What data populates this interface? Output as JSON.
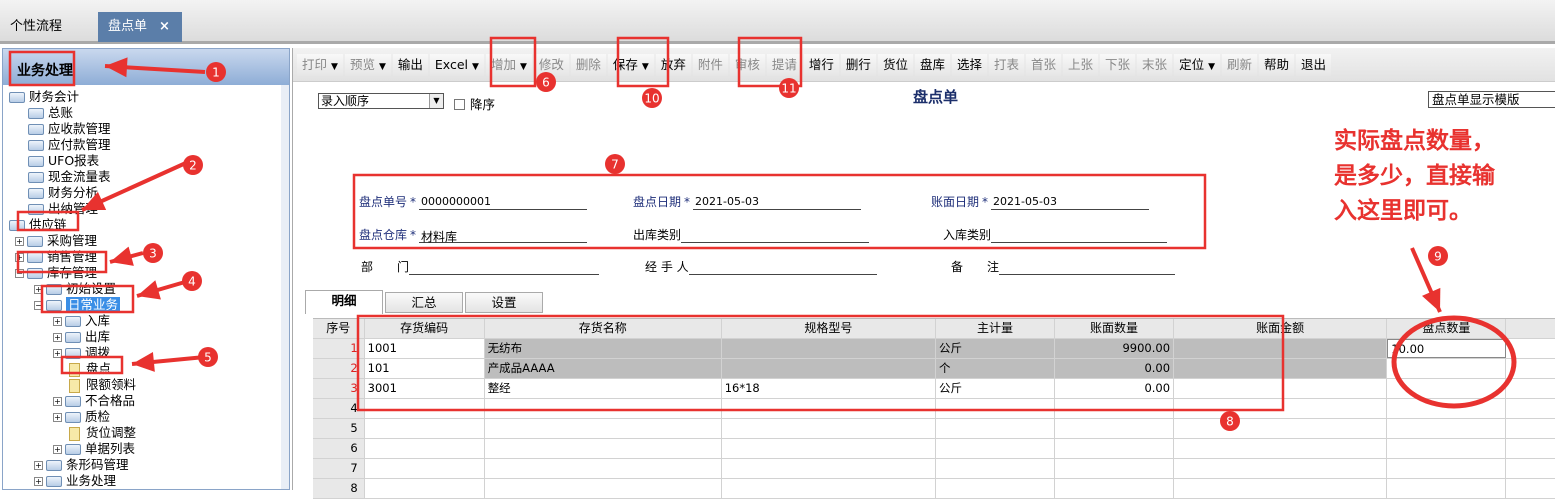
{
  "tabs": [
    {
      "label": "个性流程"
    },
    {
      "label": "盘点单",
      "close": "×"
    }
  ],
  "sidebar": {
    "title": "业务处理",
    "items": [
      {
        "label": "财务会计",
        "level": 0,
        "kind": "folder"
      },
      {
        "label": "总账",
        "level": 1,
        "kind": "folder"
      },
      {
        "label": "应收款管理",
        "level": 1,
        "kind": "folder"
      },
      {
        "label": "应付款管理",
        "level": 1,
        "kind": "folder"
      },
      {
        "label": "UFO报表",
        "level": 1,
        "kind": "folder"
      },
      {
        "label": "现金流量表",
        "level": 1,
        "kind": "folder"
      },
      {
        "label": "财务分析",
        "level": 1,
        "kind": "folder"
      },
      {
        "label": "出纳管理",
        "level": 1,
        "kind": "folder"
      },
      {
        "label": "供应链",
        "level": 0,
        "kind": "folder"
      },
      {
        "label": "采购管理",
        "level": 1,
        "kind": "folder",
        "toggle": "+"
      },
      {
        "label": "销售管理",
        "level": 1,
        "kind": "folder",
        "toggle": "+"
      },
      {
        "label": "库存管理",
        "level": 1,
        "kind": "folder",
        "toggle": "-"
      },
      {
        "label": "初始设置",
        "level": 2,
        "kind": "folder",
        "toggle": "+"
      },
      {
        "label": "日常业务",
        "level": 2,
        "kind": "folder",
        "toggle": "-",
        "selected": true
      },
      {
        "label": "入库",
        "level": 3,
        "kind": "folder",
        "toggle": "+"
      },
      {
        "label": "出库",
        "level": 3,
        "kind": "folder",
        "toggle": "+"
      },
      {
        "label": "调拨",
        "level": 3,
        "kind": "folder",
        "toggle": "+"
      },
      {
        "label": "盘点",
        "level": 3,
        "kind": "doc"
      },
      {
        "label": "限额领料",
        "level": 3,
        "kind": "doc"
      },
      {
        "label": "不合格品",
        "level": 3,
        "kind": "folder",
        "toggle": "+"
      },
      {
        "label": "质检",
        "level": 3,
        "kind": "folder",
        "toggle": "+"
      },
      {
        "label": "货位调整",
        "level": 3,
        "kind": "doc"
      },
      {
        "label": "单据列表",
        "level": 3,
        "kind": "folder",
        "toggle": "+"
      },
      {
        "label": "条形码管理",
        "level": 2,
        "kind": "folder",
        "toggle": "+"
      },
      {
        "label": "业务处理",
        "level": 2,
        "kind": "folder",
        "toggle": "+"
      }
    ]
  },
  "toolbar": [
    {
      "label": "打印",
      "enabled": false,
      "dropdown": true
    },
    {
      "label": "预览",
      "enabled": false,
      "dropdown": true
    },
    {
      "label": "输出",
      "enabled": true
    },
    {
      "label": "Excel",
      "enabled": true,
      "dropdown": true
    },
    {
      "label": "增加",
      "enabled": false,
      "dropdown": true
    },
    {
      "label": "修改",
      "enabled": false
    },
    {
      "label": "删除",
      "enabled": false
    },
    {
      "label": "保存",
      "enabled": true,
      "dropdown": true
    },
    {
      "label": "放弃",
      "enabled": true
    },
    {
      "label": "附件",
      "enabled": false
    },
    {
      "label": "审核",
      "enabled": false
    },
    {
      "label": "提请",
      "enabled": false
    },
    {
      "label": "增行",
      "enabled": true
    },
    {
      "label": "删行",
      "enabled": true
    },
    {
      "label": "货位",
      "enabled": true
    },
    {
      "label": "盘库",
      "enabled": true
    },
    {
      "label": "选择",
      "enabled": true
    },
    {
      "label": "打表",
      "enabled": false
    },
    {
      "label": "首张",
      "enabled": false
    },
    {
      "label": "上张",
      "enabled": false
    },
    {
      "label": "下张",
      "enabled": false
    },
    {
      "label": "末张",
      "enabled": false
    },
    {
      "label": "定位",
      "enabled": true,
      "dropdown": true
    },
    {
      "label": "刷新",
      "enabled": false
    },
    {
      "label": "帮助",
      "enabled": true
    },
    {
      "label": "退出",
      "enabled": true
    }
  ],
  "form": {
    "order_select": "录入顺序",
    "desc_label": "降序",
    "title": "盘点单",
    "template_select": "盘点单显示模版",
    "required_mark": "*",
    "doc_no_label": "盘点单号",
    "doc_no": "0000000001",
    "check_date_label": "盘点日期",
    "check_date": "2021-05-03",
    "book_date_label": "账面日期",
    "book_date": "2021-05-03",
    "warehouse_label": "盘点仓库",
    "warehouse": "材料库",
    "out_type_label": "出库类别",
    "in_type_label": "入库类别",
    "dept_label": "部　　门",
    "handler_label": "经 手 人",
    "remark_label": "备　　注"
  },
  "panel_tabs": [
    "明细",
    "汇总",
    "设置"
  ],
  "grid": {
    "columns": [
      "序号",
      "存货编码",
      "存货名称",
      "规格型号",
      "主计量",
      "账面数量",
      "账面金额",
      "盘点数量",
      ""
    ],
    "rows": [
      [
        "1",
        "1001",
        "无纺布",
        "",
        "公斤",
        "9900.00",
        "",
        "10.00",
        ""
      ],
      [
        "2",
        "101",
        "产成品AAAA",
        "",
        "个",
        "0.00",
        "",
        "",
        ""
      ],
      [
        "3",
        "3001",
        "整经",
        "16*18",
        "公斤",
        "0.00",
        "",
        "",
        ""
      ],
      [
        "4",
        "",
        "",
        "",
        "",
        "",
        "",
        "",
        ""
      ],
      [
        "5",
        "",
        "",
        "",
        "",
        "",
        "",
        "",
        ""
      ],
      [
        "6",
        "",
        "",
        "",
        "",
        "",
        "",
        "",
        ""
      ],
      [
        "7",
        "",
        "",
        "",
        "",
        "",
        "",
        "",
        ""
      ],
      [
        "8",
        "",
        "",
        "",
        "",
        "",
        "",
        "",
        ""
      ]
    ]
  },
  "annotations": {
    "markers": [
      "1",
      "2",
      "3",
      "4",
      "5",
      "6",
      "7",
      "8",
      "9",
      "10",
      "11"
    ],
    "note_lines": [
      "实际盘点数量，",
      "是多少，直接输",
      "入这里即可。"
    ],
    "color": "#e8322f"
  }
}
